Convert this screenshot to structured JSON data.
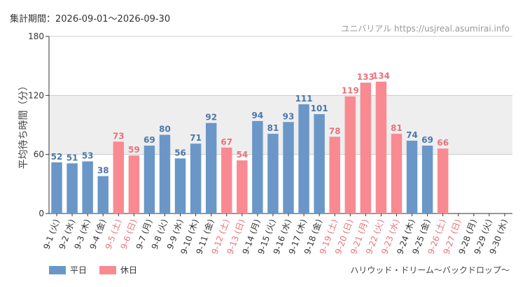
{
  "header": {
    "period_label": "集計期間：2026-09-01～2026-09-30",
    "brand": "ユニバリアル  https://usjreal.asumirai.info"
  },
  "footer": {
    "attraction": "ハリウッド・ドリーム～バックドロップ～"
  },
  "colors": {
    "weekday": "#6a97c8",
    "holiday": "#f98a91",
    "weekday_label": "#4a78ad",
    "holiday_label": "#e8737b",
    "band": "#eeeeee"
  },
  "chart_data": {
    "type": "bar",
    "ylabel": "平均待ち時間（分）",
    "ylim": [
      0,
      180
    ],
    "yticks": [
      0,
      60,
      120,
      180
    ],
    "band": [
      60,
      120
    ],
    "legend": {
      "placement": "bottom-left",
      "weekday": "平日",
      "holiday": "休日"
    },
    "categories": [
      "9-1 (火)",
      "9-2 (水)",
      "9-3 (木)",
      "9-4 (金)",
      "9-5 (土)",
      "9-6 (日)",
      "9-7 (月)",
      "9-8 (火)",
      "9-9 (水)",
      "9-10 (木)",
      "9-11 (金)",
      "9-12 (土)",
      "9-13 (日)",
      "9-14 (月)",
      "9-15 (火)",
      "9-16 (水)",
      "9-17 (木)",
      "9-18 (金)",
      "9-19 (土)",
      "9-20 (日)",
      "9-21 (月)",
      "9-22 (火)",
      "9-23 (水)",
      "9-24 (木)",
      "9-25 (金)",
      "9-26 (土)",
      "9-27 (日)",
      "9-28 (月)",
      "9-29 (火)",
      "9-30 (水)"
    ],
    "values": [
      52,
      51,
      53,
      38,
      73,
      59,
      69,
      80,
      56,
      71,
      92,
      67,
      54,
      94,
      81,
      93,
      111,
      101,
      78,
      119,
      133,
      134,
      81,
      74,
      69,
      66,
      null,
      null,
      null,
      null
    ],
    "holiday": [
      false,
      false,
      false,
      false,
      true,
      true,
      false,
      false,
      false,
      false,
      false,
      true,
      true,
      false,
      false,
      false,
      false,
      false,
      true,
      true,
      true,
      true,
      true,
      false,
      false,
      true,
      true,
      false,
      false,
      false
    ]
  }
}
